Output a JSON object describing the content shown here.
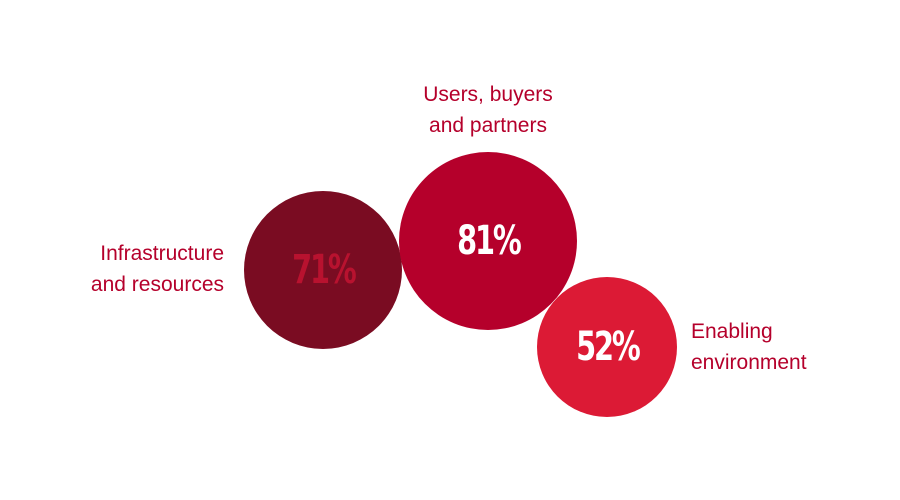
{
  "chart_data": {
    "type": "bubble",
    "title": "",
    "label_color": "#b5002b",
    "items": [
      {
        "name_line1": "Infrastructure",
        "name_line2": "and resources",
        "value": 71,
        "display": "71%",
        "fill": "#7a0c22",
        "text_color": "#b8122f"
      },
      {
        "name_line1": "Users, buyers",
        "name_line2": "and partners",
        "value": 81,
        "display": "81%",
        "fill": "#b5002b",
        "text_color": "#ffffff"
      },
      {
        "name_line1": "Enabling",
        "name_line2": "environment",
        "value": 52,
        "display": "52%",
        "fill": "#dc1a35",
        "text_color": "#ffffff"
      }
    ]
  }
}
